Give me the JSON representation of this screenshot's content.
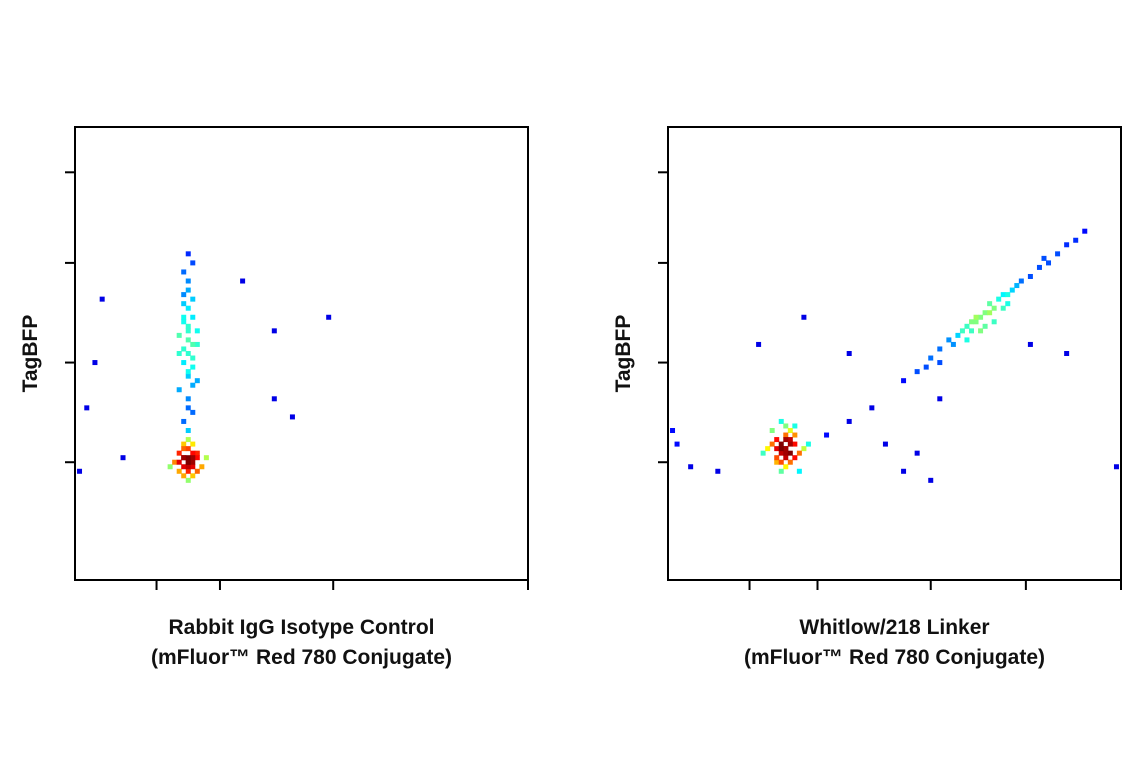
{
  "chart_data": [
    {
      "type": "scatter",
      "xlabel": [
        "Rabbit IgG Isotype Control",
        "(mFluor™ Red 780 Conjugate)"
      ],
      "ylabel": "TagBFP",
      "xlim": [
        0,
        100
      ],
      "ylim": [
        0,
        100
      ],
      "xticks": [
        18,
        32,
        57,
        100
      ],
      "yticks": [
        26,
        48,
        70,
        90
      ],
      "x": [
        25,
        24,
        26,
        23,
        27,
        25,
        24,
        26,
        25,
        22,
        28,
        25,
        24,
        26,
        23,
        27,
        25,
        26,
        24,
        25,
        21,
        29,
        25,
        26,
        24,
        23,
        27,
        25,
        24,
        26,
        25,
        24,
        26,
        25,
        23,
        27,
        25,
        24,
        26,
        25,
        24,
        26,
        25,
        23,
        27,
        25,
        24,
        26,
        25,
        24,
        26,
        25,
        25,
        24,
        26,
        23,
        27,
        25,
        24,
        26,
        25,
        25,
        24,
        26,
        25,
        6,
        4.4,
        2.6,
        37,
        44,
        56,
        48,
        44,
        1,
        10.6
      ],
      "y": [
        26,
        27,
        25,
        26,
        27,
        24,
        25,
        28,
        26,
        26,
        25,
        29,
        23,
        23,
        28,
        28,
        27,
        26,
        29,
        22,
        25,
        27,
        31,
        30,
        30,
        24,
        24,
        25,
        27,
        27,
        33,
        35,
        37,
        40,
        42,
        44,
        46,
        48,
        49,
        50,
        51,
        52,
        53,
        54,
        55,
        56,
        57,
        58,
        60,
        61,
        62,
        64,
        66,
        68,
        70,
        50,
        52,
        55,
        58,
        47,
        45,
        72,
        63,
        43,
        38,
        62,
        48,
        38,
        66,
        55,
        58,
        36,
        40,
        24,
        27
      ]
    },
    {
      "type": "scatter",
      "xlabel": [
        "Whitlow/218 Linker",
        "(mFluor™ Red 780 Conjugate)"
      ],
      "ylabel": "TagBFP",
      "xlim": [
        0,
        100
      ],
      "ylim": [
        0,
        100
      ],
      "xticks": [
        18,
        33,
        58,
        79,
        100
      ],
      "yticks": [
        26,
        48,
        70,
        90
      ],
      "x": [
        26,
        25,
        27,
        24,
        28,
        26,
        25,
        27,
        23,
        29,
        26,
        25,
        27,
        24,
        28,
        26,
        22,
        30,
        26,
        25,
        27,
        21,
        31,
        26,
        24,
        28,
        25,
        27,
        26,
        23,
        29,
        26,
        25,
        24,
        28,
        52,
        55,
        58,
        60,
        62,
        64,
        65,
        66,
        67,
        68,
        69,
        70,
        71,
        72,
        73,
        74,
        75,
        76,
        78,
        80,
        82,
        84,
        86,
        88,
        90,
        92,
        63,
        66,
        69,
        72,
        75,
        70,
        68,
        67,
        71,
        74,
        77,
        60,
        57,
        83,
        40,
        45,
        35,
        48,
        60,
        55,
        2,
        5,
        1,
        11,
        20,
        30,
        40,
        80,
        88,
        99,
        58,
        52
      ],
      "y": [
        29,
        30,
        28,
        29,
        30,
        27,
        28,
        31,
        30,
        28,
        32,
        26,
        26,
        27,
        32,
        29,
        29,
        29,
        34,
        24,
        33,
        28,
        30,
        25,
        31,
        27,
        29,
        30,
        28,
        33,
        24,
        31,
        35,
        26,
        34,
        44,
        46,
        49,
        51,
        53,
        54,
        55,
        56,
        57,
        57,
        58,
        59,
        59,
        60,
        62,
        63,
        63,
        64,
        66,
        67,
        69,
        70,
        72,
        74,
        75,
        77,
        52,
        53,
        55,
        57,
        61,
        56,
        58,
        55,
        61,
        60,
        65,
        48,
        47,
        71,
        35,
        38,
        32,
        30,
        40,
        28,
        30,
        25,
        33,
        24,
        52,
        58,
        50,
        52,
        50,
        25,
        22,
        24
      ]
    }
  ]
}
